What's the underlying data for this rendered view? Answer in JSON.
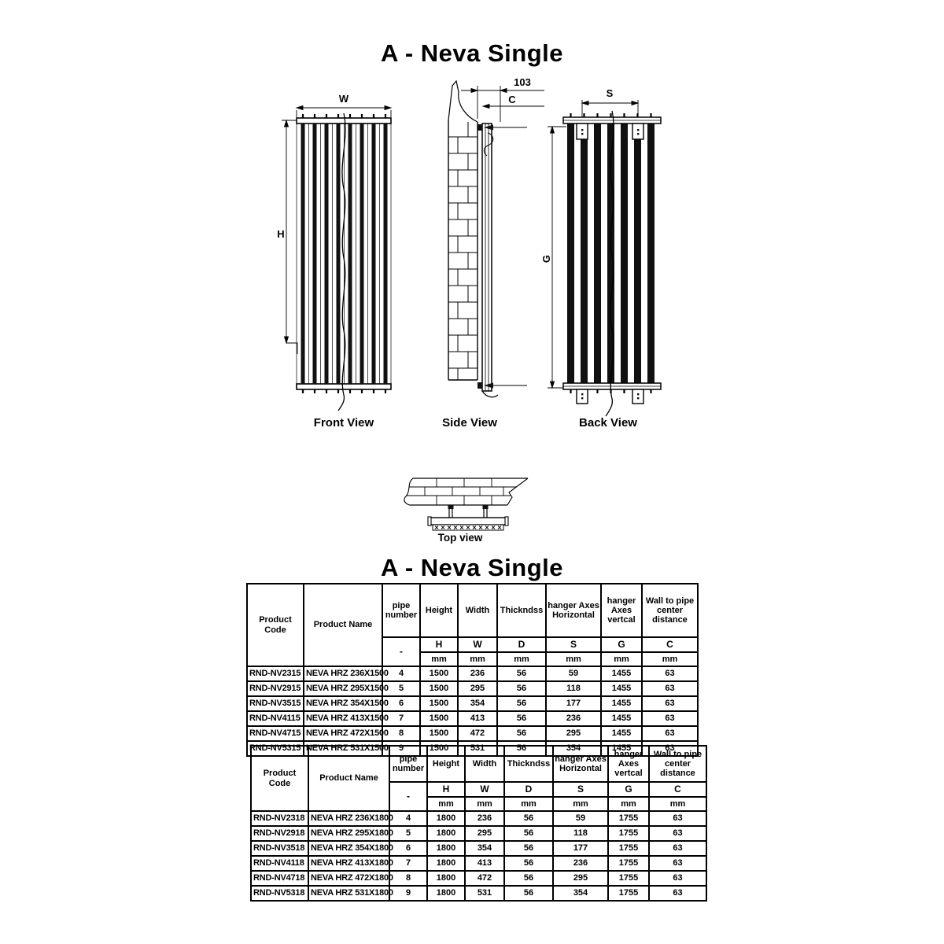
{
  "titles": {
    "top": "A - Neva Single",
    "table_section": "A - Neva Single"
  },
  "views": {
    "front": {
      "label": "Front View",
      "width_dim": "W",
      "height_dim": "H"
    },
    "side": {
      "label": "Side View",
      "offset_dim": "103",
      "wall_dim": "C"
    },
    "back": {
      "label": "Back View",
      "hanger_span_dim": "S",
      "hanger_vertical_dim": "G"
    },
    "top": {
      "label": "Top view"
    }
  },
  "tables": [
    {
      "header": {
        "product_code": "Product Code",
        "product_name": "Product Name",
        "pipe_number": "pipe number",
        "height": "Height",
        "width": "Width",
        "thickness": "Thickndss",
        "hanger_h": "hanger Axes Horizontal",
        "hanger_v": "hanger Axes vertcal",
        "wall": "Wall to pipe center distance",
        "dash": "-",
        "symbols": [
          "H",
          "W",
          "D",
          "S",
          "G",
          "C"
        ],
        "unit": "mm"
      },
      "rows": [
        [
          "RND-NV2315",
          "NEVA HRZ 236X1500",
          "4",
          "1500",
          "236",
          "56",
          "59",
          "1455",
          "63"
        ],
        [
          "RND-NV2915",
          "NEVA HRZ 295X1500",
          "5",
          "1500",
          "295",
          "56",
          "118",
          "1455",
          "63"
        ],
        [
          "RND-NV3515",
          "NEVA HRZ 354X1500",
          "6",
          "1500",
          "354",
          "56",
          "177",
          "1455",
          "63"
        ],
        [
          "RND-NV4115",
          "NEVA HRZ 413X1500",
          "7",
          "1500",
          "413",
          "56",
          "236",
          "1455",
          "63"
        ],
        [
          "RND-NV4715",
          "NEVA HRZ 472X1500",
          "8",
          "1500",
          "472",
          "56",
          "295",
          "1455",
          "63"
        ],
        [
          "RND-NV5315",
          "NEVA HRZ 531X1500",
          "9",
          "1500",
          "531",
          "56",
          "354",
          "1455",
          "63"
        ]
      ]
    },
    {
      "header": {
        "product_code": "Product Code",
        "product_name": "Product Name",
        "pipe_number": "pipe number",
        "height": "Height",
        "width": "Width",
        "thickness": "Thickndss",
        "hanger_h": "hanger Axes Horizontal",
        "hanger_v": "hanger Axes vertcal",
        "wall": "Wall to pipe center distance",
        "dash": "-",
        "symbols": [
          "H",
          "W",
          "D",
          "S",
          "G",
          "C"
        ],
        "unit": "mm"
      },
      "rows": [
        [
          "RND-NV2318",
          "NEVA HRZ 236X1800",
          "4",
          "1800",
          "236",
          "56",
          "59",
          "1755",
          "63"
        ],
        [
          "RND-NV2918",
          "NEVA HRZ 295X1800",
          "5",
          "1800",
          "295",
          "56",
          "118",
          "1755",
          "63"
        ],
        [
          "RND-NV3518",
          "NEVA HRZ 354X1800",
          "6",
          "1800",
          "354",
          "56",
          "177",
          "1755",
          "63"
        ],
        [
          "RND-NV4118",
          "NEVA HRZ 413X1800",
          "7",
          "1800",
          "413",
          "56",
          "236",
          "1755",
          "63"
        ],
        [
          "RND-NV4718",
          "NEVA HRZ 472X1800",
          "8",
          "1800",
          "472",
          "56",
          "295",
          "1755",
          "63"
        ],
        [
          "RND-NV5318",
          "NEVA HRZ 531X1800",
          "9",
          "1800",
          "531",
          "56",
          "354",
          "1755",
          "63"
        ]
      ]
    }
  ]
}
